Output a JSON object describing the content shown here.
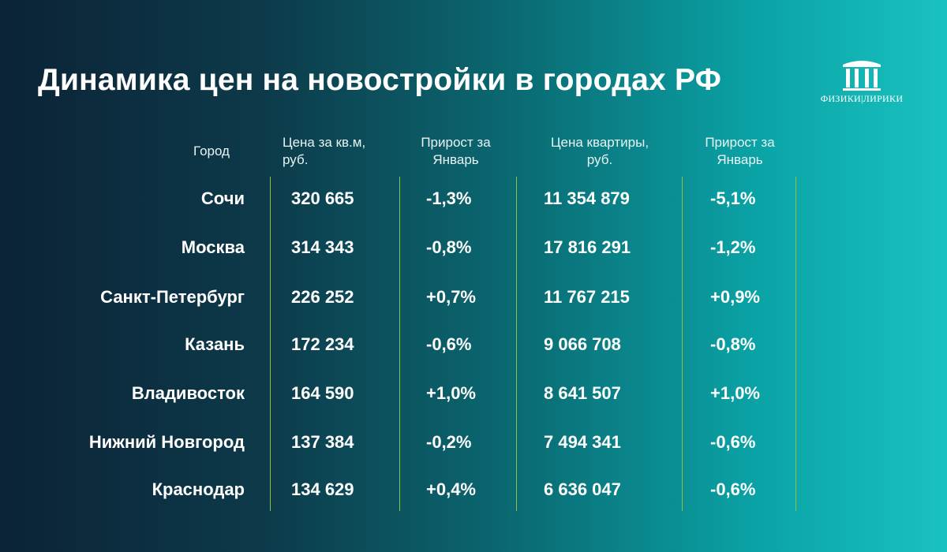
{
  "title": "Динамика цен на новостройки в городах РФ",
  "logo": {
    "text": "ФИЗИКИ|ЛИРИКИ",
    "icon": "columns-icon"
  },
  "colors": {
    "divider": "#8fc047",
    "text": "#ffffff"
  },
  "chart_data": {
    "type": "table",
    "columns": [
      "Город",
      "Цена за кв.м, руб.",
      "Прирост за Январь",
      "Цена квартиры, руб.",
      "Прирост за Январь"
    ],
    "rows": [
      [
        "Сочи",
        "320 665",
        "-1,3%",
        "11 354 879",
        "-5,1%"
      ],
      [
        "Москва",
        "314 343",
        "-0,8%",
        "17 816 291",
        "-1,2%"
      ],
      [
        "Санкт-Петербург",
        "226 252",
        "+0,7%",
        "11 767 215",
        "+0,9%"
      ],
      [
        "Казань",
        "172 234",
        "-0,6%",
        "9 066 708",
        "-0,8%"
      ],
      [
        "Владивосток",
        "164 590",
        "+1,0%",
        "8 641 507",
        "+1,0%"
      ],
      [
        "Нижний Новгород",
        "137 384",
        "-0,2%",
        "7 494 341",
        "-0,6%"
      ],
      [
        "Краснодар",
        "134 629",
        "+0,4%",
        "6 636 047",
        "-0,6%"
      ]
    ]
  }
}
